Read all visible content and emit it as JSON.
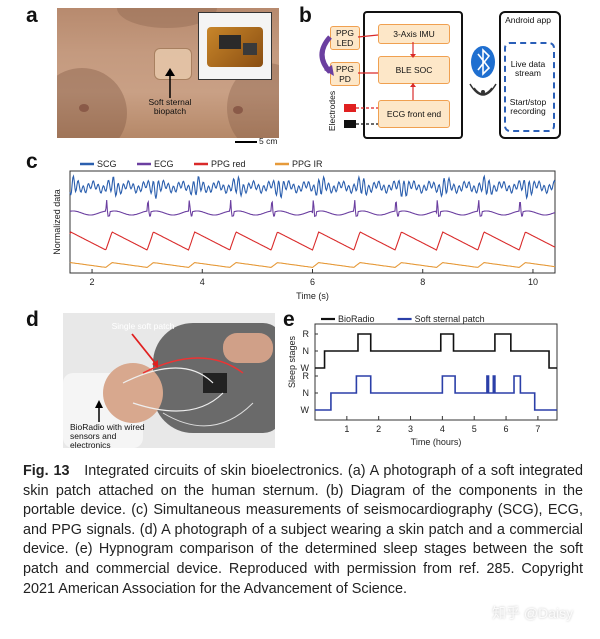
{
  "panels": {
    "a": {
      "letter": "a",
      "patch_label": "Soft sternal biopatch",
      "scale_label": "5 cm"
    },
    "b": {
      "letter": "b",
      "ppg_led": "PPG LED",
      "ppg_pd": "PPG PD",
      "imu": "3-Axis IMU",
      "ble": "BLE SOC",
      "ecg": "ECG front end",
      "electrodes": "Electrodes",
      "app_title": "Android app",
      "live_stream": "Live data stream",
      "recording": "Start/stop recording"
    },
    "c": {
      "letter": "c",
      "ylabel": "Normalized data",
      "xlabel": "Time (s)",
      "xticks": [
        "2",
        "4",
        "6",
        "8",
        "10"
      ]
    },
    "d": {
      "letter": "d",
      "single_patch": "Single soft patch",
      "bioradio": "BioRadio with wired sensors and electronics"
    },
    "e": {
      "letter": "e",
      "ylabel": "Sleep stages",
      "xlabel": "Time (hours)",
      "yticks": [
        "R",
        "N",
        "W"
      ],
      "xticks": [
        "1",
        "2",
        "3",
        "4",
        "5",
        "6",
        "7"
      ]
    }
  },
  "chart_data": [
    {
      "type": "line",
      "panel": "c",
      "xlabel": "Time (s)",
      "ylabel": "Normalized data",
      "xlim": [
        1.6,
        10.4
      ],
      "series": [
        {
          "name": "SCG",
          "color": "#2b5fae"
        },
        {
          "name": "ECG",
          "color": "#6b3fa0"
        },
        {
          "name": "PPG red",
          "color": "#d92a2a"
        },
        {
          "name": "PPG IR",
          "color": "#e69a3a"
        }
      ],
      "legend": "top"
    },
    {
      "type": "line",
      "panel": "e",
      "xlabel": "Time (hours)",
      "ylabel": "Sleep stages",
      "xlim": [
        0,
        7.6
      ],
      "ycategories": [
        "W",
        "N",
        "R"
      ],
      "series": [
        {
          "name": "BioRadio",
          "color": "#111111",
          "steps": [
            [
              0,
              0
            ],
            [
              0.3,
              1
            ],
            [
              1.35,
              2
            ],
            [
              1.75,
              1
            ],
            [
              3.95,
              2
            ],
            [
              4.35,
              1
            ],
            [
              5.65,
              2
            ],
            [
              6.15,
              1
            ],
            [
              7.35,
              0
            ],
            [
              7.6,
              0
            ]
          ]
        },
        {
          "name": "Soft sternal patch",
          "color": "#2b3fa8",
          "steps": [
            [
              0,
              0
            ],
            [
              0.5,
              1
            ],
            [
              1.3,
              2
            ],
            [
              1.75,
              1
            ],
            [
              4.0,
              2
            ],
            [
              4.4,
              1
            ],
            [
              5.4,
              2
            ],
            [
              5.45,
              1
            ],
            [
              5.6,
              2
            ],
            [
              5.65,
              1
            ],
            [
              6.25,
              2
            ],
            [
              6.45,
              1
            ],
            [
              6.9,
              0
            ],
            [
              7.6,
              0
            ]
          ]
        }
      ],
      "legend": "top"
    }
  ],
  "caption": {
    "fig_label": "Fig. 13",
    "text": "Integrated circuits of skin bioelectronics. (a) A photograph of a soft integrated skin patch attached on the human sternum. (b) Diagram of the components in the portable device. (c) Simultaneous measurements of seismocardiography (SCG), ECG, and PPG signals. (d) A photograph of a subject wearing a skin patch and a commercial device. (e) Hypnogram comparison of the determined sleep stages between the soft patch and commercial device. Reproduced with permission from ref. 285. Copyright 2021 American Association for the Advancement of Science."
  },
  "watermark": "知乎 @Daisy",
  "colors": {
    "box_fill": "#fde7c8",
    "box_border": "#f0a050",
    "app_dashed": "#2a5fb8",
    "bluetooth": "#1f6fd0",
    "ppg_arrow": "#6b3fa0"
  }
}
